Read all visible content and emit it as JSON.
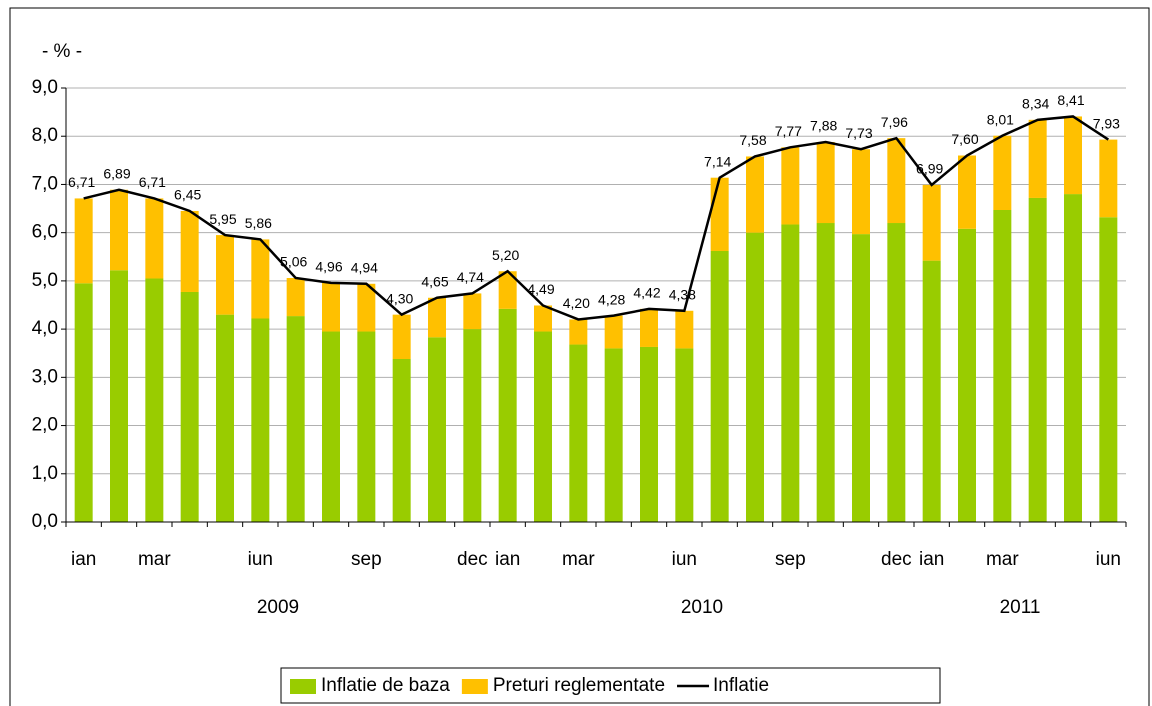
{
  "chart_data": {
    "type": "bar",
    "stacked": true,
    "y_unit_label": "- % -",
    "categories": [
      "ian",
      null,
      "mar",
      null,
      null,
      "iun",
      null,
      null,
      "sep",
      null,
      null,
      "dec",
      "ian",
      null,
      "mar",
      null,
      null,
      "iun",
      null,
      null,
      "sep",
      null,
      null,
      "dec",
      "ian",
      null,
      "mar",
      null,
      null,
      "iun"
    ],
    "x_groups": [
      {
        "label": "2009",
        "count": 12
      },
      {
        "label": "2010",
        "count": 12
      },
      {
        "label": "2011",
        "count": 6
      }
    ],
    "series": [
      {
        "name": "Inflatie de baza",
        "type": "bar",
        "color": "#99cc00",
        "values": [
          4.95,
          5.22,
          5.05,
          4.77,
          4.3,
          4.22,
          4.27,
          3.95,
          3.95,
          3.38,
          3.83,
          4.0,
          4.42,
          3.95,
          3.68,
          3.6,
          3.63,
          3.6,
          5.62,
          6.0,
          6.17,
          6.2,
          5.97,
          6.2,
          5.42,
          6.08,
          6.47,
          6.72,
          6.8,
          6.32
        ]
      },
      {
        "name": "Preturi reglementate",
        "type": "bar",
        "color": "#ffc000",
        "values": [
          1.76,
          1.67,
          1.66,
          1.68,
          1.65,
          1.64,
          0.79,
          1.01,
          0.99,
          0.92,
          0.82,
          0.74,
          0.78,
          0.54,
          0.52,
          0.68,
          0.79,
          0.78,
          1.52,
          1.58,
          1.6,
          1.68,
          1.76,
          1.76,
          1.57,
          1.52,
          1.54,
          1.62,
          1.61,
          1.61
        ]
      },
      {
        "name": "Inflatie",
        "type": "line",
        "color": "#000000",
        "values": [
          6.71,
          6.89,
          6.71,
          6.45,
          5.95,
          5.86,
          5.06,
          4.96,
          4.94,
          4.3,
          4.65,
          4.74,
          5.2,
          4.49,
          4.2,
          4.28,
          4.42,
          4.38,
          7.14,
          7.58,
          7.77,
          7.88,
          7.73,
          7.96,
          6.99,
          7.6,
          8.01,
          8.34,
          8.41,
          7.93
        ],
        "value_labels": [
          "6,71",
          "6,89",
          "6,71",
          "6,45",
          "5,95",
          "5,86",
          "5,06",
          "4,96",
          "4,94",
          "4,30",
          "4,65",
          "4,74",
          "5,20",
          "4,49",
          "4,20",
          "4,28",
          "4,42",
          "4,38",
          "7,14",
          "7,58",
          "7,77",
          "7,88",
          "7,73",
          "7,96",
          "6,99",
          "7,60",
          "8,01",
          "8,34",
          "8,41",
          "7,93"
        ]
      }
    ],
    "ylim": [
      0,
      9
    ],
    "yticks": [
      {
        "value": 0,
        "label": "0,0"
      },
      {
        "value": 1,
        "label": "1,0"
      },
      {
        "value": 2,
        "label": "2,0"
      },
      {
        "value": 3,
        "label": "3,0"
      },
      {
        "value": 4,
        "label": "4,0"
      },
      {
        "value": 5,
        "label": "5,0"
      },
      {
        "value": 6,
        "label": "6,0"
      },
      {
        "value": 7,
        "label": "7,0"
      },
      {
        "value": 8,
        "label": "8,0"
      },
      {
        "value": 9,
        "label": "9,0"
      }
    ],
    "grid": true,
    "legend": "bottom"
  }
}
